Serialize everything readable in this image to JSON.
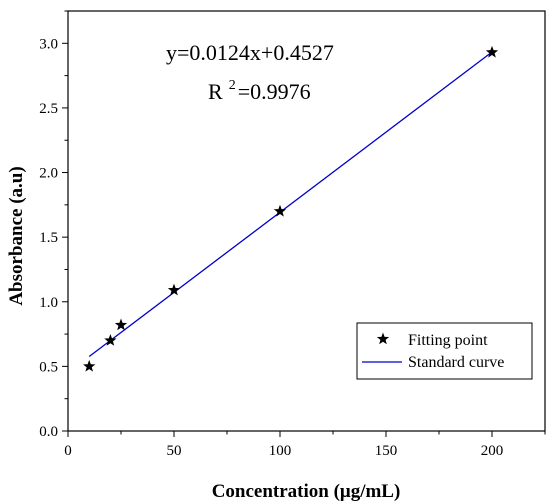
{
  "chart_data": {
    "type": "scatter",
    "xlabel": "Concentration (μg/mL)",
    "ylabel": "Absorbance (a.u)",
    "xlim": [
      0,
      225
    ],
    "ylim": [
      0,
      3.25
    ],
    "x_ticks": [
      0,
      50,
      100,
      150,
      200
    ],
    "x_tick_labels": [
      "0",
      "50",
      "100",
      "150",
      "200"
    ],
    "y_ticks": [
      0,
      0.5,
      1.0,
      1.5,
      2.0,
      2.5,
      3.0
    ],
    "y_tick_labels": [
      "0.0",
      "0.5",
      "1.0",
      "1.5",
      "2.0",
      "2.5",
      "3.0"
    ],
    "grid": false,
    "legend_position": "bottom-right",
    "series": [
      {
        "name": "Fitting point",
        "kind": "scatter",
        "marker": "star",
        "color": "#000000",
        "points": [
          {
            "x": 10,
            "y": 0.5
          },
          {
            "x": 20,
            "y": 0.7
          },
          {
            "x": 25,
            "y": 0.82
          },
          {
            "x": 50,
            "y": 1.09
          },
          {
            "x": 100,
            "y": 1.7
          },
          {
            "x": 200,
            "y": 2.93
          }
        ]
      },
      {
        "name": "Standard curve",
        "kind": "line",
        "color": "#0000cc",
        "slope": 0.0124,
        "intercept": 0.4527,
        "x_range": [
          10,
          200
        ]
      }
    ],
    "annotations": {
      "equation": "y=0.0124x+0.4527",
      "r2_label": "R",
      "r2_exponent": "2",
      "r2_value": "=0.9976"
    }
  }
}
